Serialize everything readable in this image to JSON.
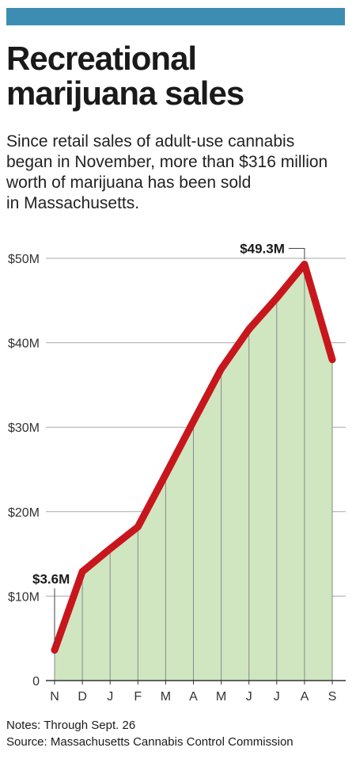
{
  "header": {
    "accent_color": "#3d8db3",
    "title_line1": "Recreational",
    "title_line2": "marijuana sales",
    "subtitle_line1": "Since retail sales of adult-use cannabis",
    "subtitle_line2": "began in November, more than $316 million",
    "subtitle_line3": "worth of marijuana has been sold",
    "subtitle_line4": "in Massachusetts."
  },
  "chart_data": {
    "type": "area",
    "categories": [
      "N",
      "D",
      "J",
      "F",
      "M",
      "A",
      "M",
      "J",
      "J",
      "A",
      "S"
    ],
    "series": [
      {
        "values": [
          3.6,
          12.9,
          15.6,
          18.2,
          24.4,
          30.7,
          36.9,
          41.6,
          45.3,
          49.3,
          38.0
        ],
        "line_color": "#c8161d",
        "fill_color": "#cfe6c1"
      }
    ],
    "ylim": [
      0,
      50
    ],
    "yticks": [
      0,
      10,
      20,
      30,
      40,
      50
    ],
    "ytick_labels": [
      "0",
      "$10M",
      "$20M",
      "$30M",
      "$40M",
      "$50M"
    ],
    "grid": true,
    "annotations": [
      {
        "index": 0,
        "text": "$3.6M"
      },
      {
        "index": 9,
        "text": "$49.3M"
      }
    ]
  },
  "notes": {
    "line1": "Notes: Through Sept. 26",
    "line2": "Source: Massachusetts Cannabis Control Commission"
  }
}
